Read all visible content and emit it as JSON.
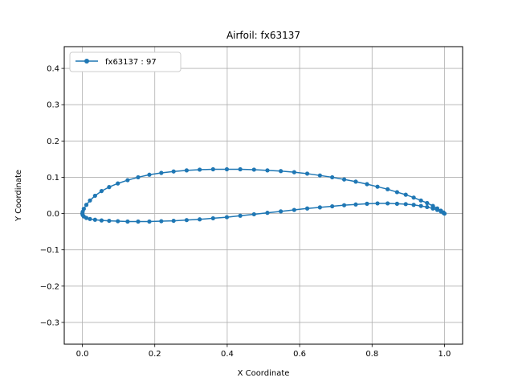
{
  "chart_data": {
    "type": "line",
    "title": "Airfoil: fx63137",
    "xlabel": "X Coordinate",
    "ylabel": "Y Coordinate",
    "xlim": [
      -0.05,
      1.05
    ],
    "ylim": [
      -0.36,
      0.46
    ],
    "xticks": [
      0.0,
      0.2,
      0.4,
      0.6,
      0.8,
      1.0
    ],
    "xtick_labels": [
      "0.0",
      "0.2",
      "0.4",
      "0.6",
      "0.8",
      "1.0"
    ],
    "yticks": [
      -0.3,
      -0.2,
      -0.1,
      0.0,
      0.1,
      0.2,
      0.3,
      0.4
    ],
    "ytick_labels": [
      "−0.3",
      "−0.2",
      "−0.1",
      "0.0",
      "0.1",
      "0.2",
      "0.3",
      "0.4"
    ],
    "grid": true,
    "legend_position": "top-left",
    "series": [
      {
        "name": "fx63137 : 97",
        "color": "#1f77b4",
        "marker": "circle",
        "x": [
          1.0,
          0.997,
          0.99,
          0.98,
          0.968,
          0.952,
          0.935,
          0.915,
          0.893,
          0.869,
          0.843,
          0.815,
          0.786,
          0.755,
          0.723,
          0.69,
          0.656,
          0.621,
          0.585,
          0.548,
          0.511,
          0.474,
          0.436,
          0.399,
          0.361,
          0.324,
          0.288,
          0.252,
          0.218,
          0.185,
          0.154,
          0.125,
          0.098,
          0.074,
          0.053,
          0.035,
          0.021,
          0.011,
          0.004,
          0.001,
          0.0,
          0.001,
          0.004,
          0.011,
          0.021,
          0.035,
          0.053,
          0.074,
          0.098,
          0.125,
          0.154,
          0.185,
          0.218,
          0.252,
          0.288,
          0.324,
          0.361,
          0.399,
          0.436,
          0.474,
          0.511,
          0.548,
          0.585,
          0.621,
          0.656,
          0.69,
          0.723,
          0.755,
          0.786,
          0.815,
          0.843,
          0.869,
          0.893,
          0.915,
          0.935,
          0.952,
          0.968,
          0.98,
          0.99,
          0.997,
          1.0
        ],
        "y": [
          0.0,
          0.003,
          0.008,
          0.014,
          0.021,
          0.029,
          0.036,
          0.044,
          0.052,
          0.059,
          0.067,
          0.074,
          0.081,
          0.088,
          0.094,
          0.1,
          0.105,
          0.11,
          0.114,
          0.117,
          0.119,
          0.121,
          0.122,
          0.122,
          0.122,
          0.121,
          0.119,
          0.116,
          0.112,
          0.107,
          0.1,
          0.092,
          0.083,
          0.073,
          0.062,
          0.049,
          0.036,
          0.024,
          0.013,
          0.005,
          0.0,
          -0.004,
          -0.008,
          -0.012,
          -0.015,
          -0.017,
          -0.019,
          -0.02,
          -0.021,
          -0.022,
          -0.022,
          -0.022,
          -0.021,
          -0.02,
          -0.018,
          -0.016,
          -0.013,
          -0.01,
          -0.006,
          -0.002,
          0.002,
          0.006,
          0.01,
          0.014,
          0.017,
          0.02,
          0.023,
          0.025,
          0.027,
          0.028,
          0.028,
          0.027,
          0.026,
          0.024,
          0.021,
          0.018,
          0.014,
          0.01,
          0.006,
          0.002,
          0.0
        ]
      }
    ]
  }
}
